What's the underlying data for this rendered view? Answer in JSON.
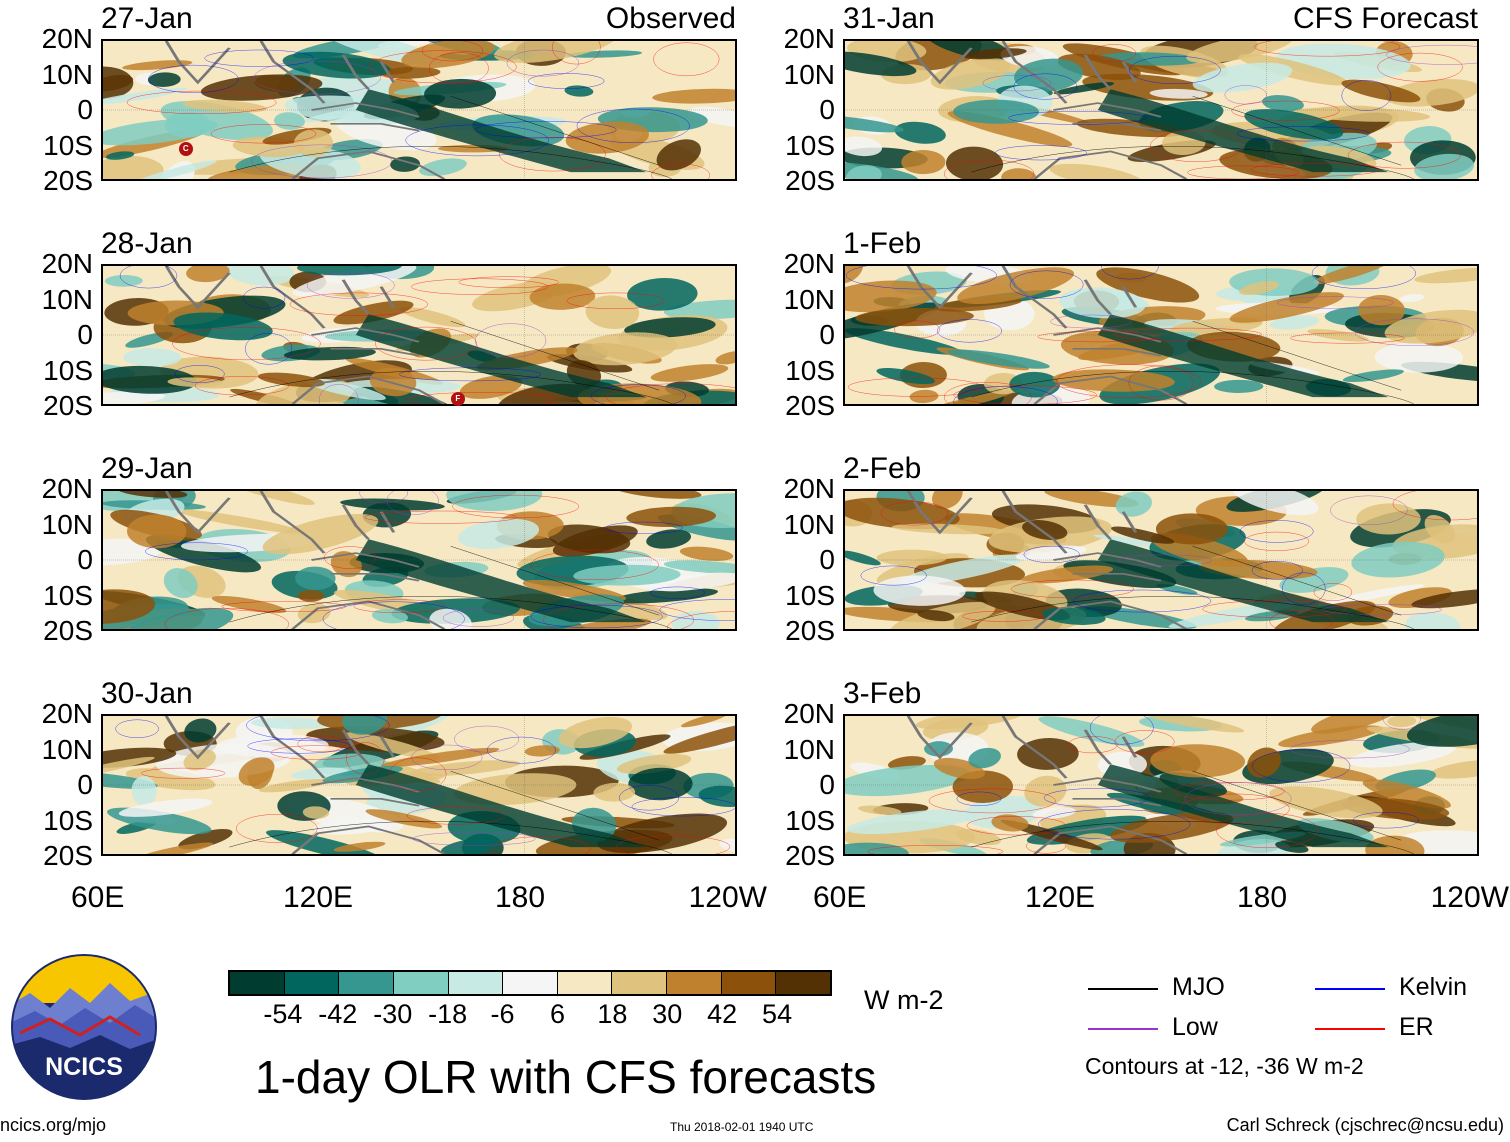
{
  "main_title": "1-day OLR with CFS forecasts",
  "observed_label": "Observed",
  "forecast_label": "CFS Forecast",
  "latitude_labels": [
    "20N",
    "10N",
    "0",
    "10S",
    "20S"
  ],
  "longitude_labels": [
    "60E",
    "120E",
    "180",
    "120W"
  ],
  "observed_panels": [
    {
      "date": "27-Jan",
      "markers": [
        {
          "label": "C",
          "lon": 84,
          "lat": -11
        }
      ]
    },
    {
      "date": "28-Jan",
      "markers": [
        {
          "label": "F",
          "lon": 161,
          "lat": -18
        }
      ]
    },
    {
      "date": "29-Jan",
      "markers": []
    },
    {
      "date": "30-Jan",
      "markers": []
    }
  ],
  "forecast_panels": [
    {
      "date": "31-Jan"
    },
    {
      "date": "1-Feb"
    },
    {
      "date": "2-Feb"
    },
    {
      "date": "3-Feb"
    }
  ],
  "colorbar": {
    "labels": [
      "-54",
      "-42",
      "-30",
      "-18",
      "-6",
      "6",
      "18",
      "30",
      "42",
      "54"
    ],
    "colors": [
      "#003c30",
      "#01665e",
      "#35978f",
      "#80cdc1",
      "#c7eae5",
      "#f5f5f5",
      "#f6e8c3",
      "#dfc27d",
      "#bf812d",
      "#8c510a",
      "#543005"
    ],
    "units": "W m-2"
  },
  "legend": {
    "items": [
      {
        "label": "MJO",
        "color": "#000000"
      },
      {
        "label": "Kelvin",
        "color": "#0000ff"
      },
      {
        "label": "Low",
        "color": "#9933cc"
      },
      {
        "label": "ER",
        "color": "#ff0000"
      }
    ],
    "contour_note": "Contours at -12, -36 W m-2"
  },
  "logo_text": "NCICS",
  "footer": {
    "website": "ncics.org/mjo",
    "timestamp": "Thu 2018-02-01 1940 UTC",
    "credit": "Carl Schreck (cjschrec@ncsu.edu)"
  }
}
